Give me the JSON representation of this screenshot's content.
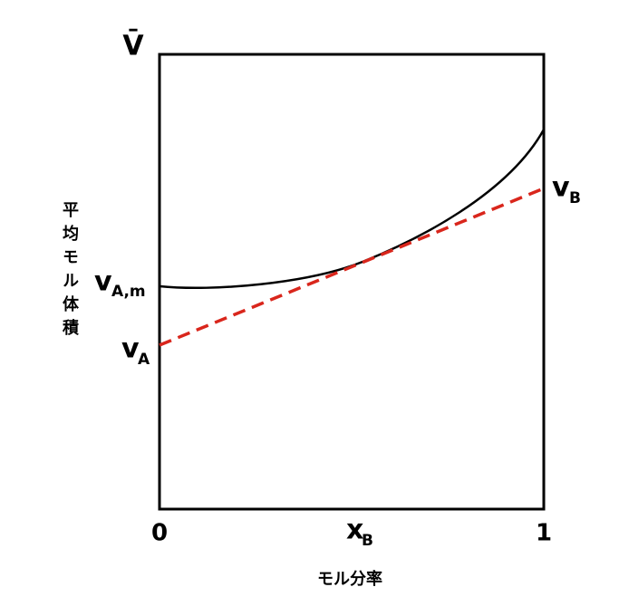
{
  "y_axis": {
    "symbol": "V̄",
    "title": "平均モル体積"
  },
  "x_axis": {
    "title": "モル分率",
    "start": "0",
    "end": "1",
    "point": {
      "main": "x",
      "sub": "B"
    }
  },
  "labels": [
    {
      "main": "v",
      "sub": "A,m"
    },
    {
      "main": "v",
      "sub": "A"
    },
    {
      "main": "v",
      "sub": "B"
    }
  ]
}
